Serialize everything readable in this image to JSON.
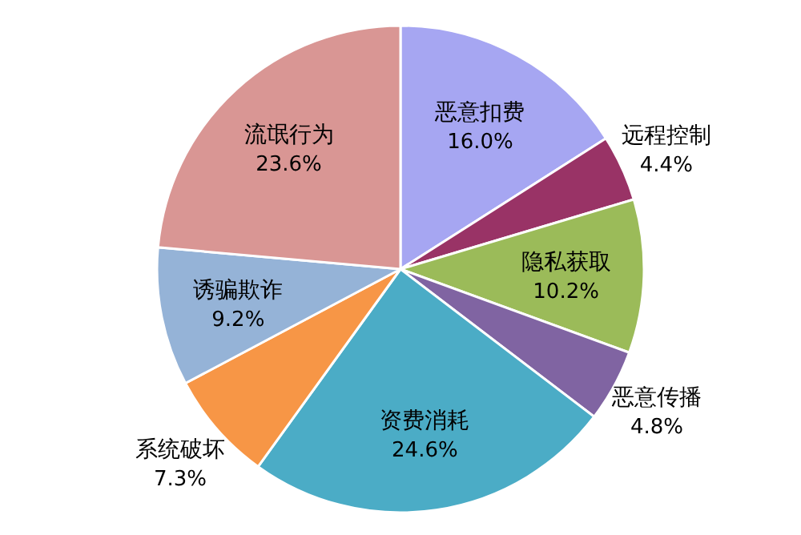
{
  "chart_data": {
    "type": "pie",
    "categories": [
      "恶意扣费",
      "远程控制",
      "隐私获取",
      "恶意传播",
      "资费消耗",
      "系统破坏",
      "诱骗欺诈",
      "流氓行为"
    ],
    "values": [
      16.0,
      4.4,
      10.2,
      4.8,
      24.6,
      7.3,
      9.2,
      23.6
    ],
    "value_labels": [
      "16.0%",
      "4.4%",
      "10.2%",
      "4.8%",
      "24.6%",
      "7.3%",
      "9.2%",
      "23.6%"
    ],
    "colors": [
      "#a6a6f2",
      "#993366",
      "#9bbb59",
      "#8064a2",
      "#4bacc6",
      "#f79646",
      "#95b3d7",
      "#d99694"
    ]
  }
}
